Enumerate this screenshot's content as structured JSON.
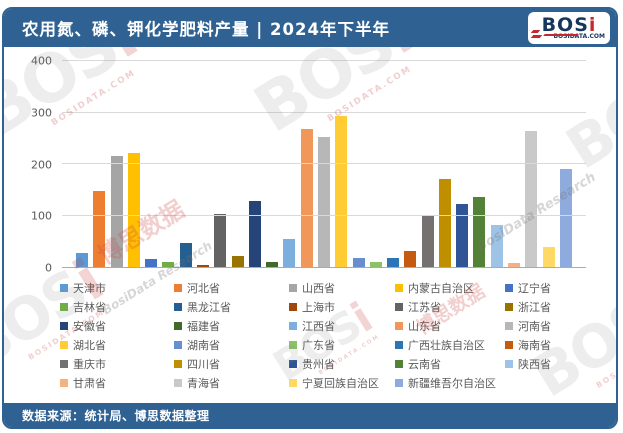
{
  "header": {
    "title": "农用氮、磷、钾化学肥料产量 | 2024年下半年",
    "logo": {
      "main": "BOS",
      "accent": "i",
      "site": "BOSIDATA.COM"
    }
  },
  "footer": {
    "source": "数据来源：统计局、博思数据整理"
  },
  "colors": {
    "theme_blue": "#2F6292",
    "grid": "#D9D9D9",
    "axis_line": "#ABABAB",
    "text_gray": "#595959",
    "logo_navy": "#16365C",
    "logo_red": "#C5272D"
  },
  "watermark": {
    "logo_main": "BOS",
    "logo_accent": "i",
    "site": "BOSIDATA.COM",
    "cn": "博思数据",
    "script": "BosiData Research"
  },
  "chart_data": {
    "type": "bar",
    "title": "农用氮、磷、钾化学肥料产量 | 2024年下半年",
    "xlabel": "",
    "ylabel": "",
    "ylim": [
      0,
      400
    ],
    "yticks": [
      0,
      100,
      200,
      300,
      400
    ],
    "grid": true,
    "legend_position": "bottom",
    "categories": [
      "天津市",
      "河北省",
      "山西省",
      "内蒙古自治区",
      "辽宁省",
      "吉林省",
      "黑龙江省",
      "上海市",
      "江苏省",
      "浙江省",
      "安徽省",
      "福建省",
      "江西省",
      "山东省",
      "河南省",
      "湖北省",
      "湖南省",
      "广东省",
      "广西壮族自治区",
      "海南省",
      "重庆市",
      "四川省",
      "贵州省",
      "云南省",
      "陕西省",
      "甘肃省",
      "青海省",
      "宁夏回族自治区",
      "新疆维吾尔自治区"
    ],
    "values": [
      27,
      148,
      215,
      222,
      15,
      9,
      47,
      3,
      103,
      21,
      128,
      10,
      55,
      268,
      252,
      294,
      18,
      9,
      17,
      31,
      99,
      170,
      123,
      136,
      81,
      7,
      265,
      38,
      190
    ],
    "colors": [
      "#5B9BD5",
      "#ED7D31",
      "#A5A5A5",
      "#FFC000",
      "#4472C4",
      "#70AD47",
      "#255E91",
      "#9E480E",
      "#636363",
      "#997300",
      "#264478",
      "#43682B",
      "#7CAFDD",
      "#F1975A",
      "#B7B7B7",
      "#FFCD33",
      "#698ED0",
      "#8CC168",
      "#2E75B6",
      "#C55A11",
      "#767171",
      "#BF8F00",
      "#2F5597",
      "#538135",
      "#9DC3E6",
      "#F4B183",
      "#C9C9C9",
      "#FFD966",
      "#8FAADC"
    ]
  }
}
